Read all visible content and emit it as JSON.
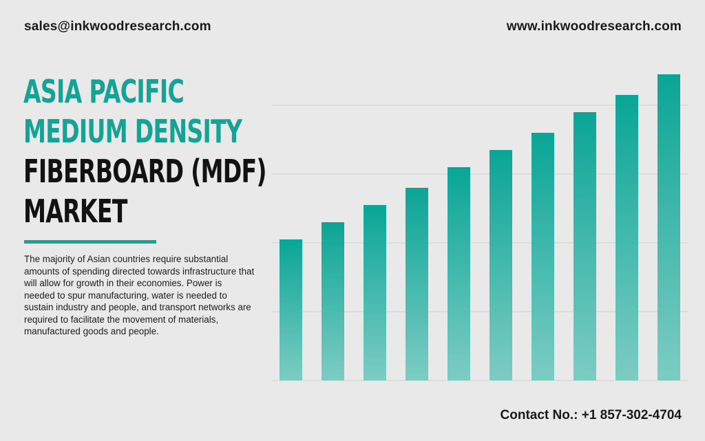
{
  "header": {
    "email": "sales@inkwoodresearch.com",
    "website": "www.inkwoodresearch.com"
  },
  "title": {
    "line1": "ASIA PACIFIC",
    "line2": "MEDIUM DENSITY",
    "line3": "FIBERBOARD (MDF)",
    "line4": "MARKET"
  },
  "description": "The majority of Asian countries require substantial amounts of spending directed towards infrastructure that will allow for growth in their economies. Power is needed to spur manufacturing, water is needed to sustain industry and people, and transport networks are required to facilitate the movement of materials, manufactured goods and people.",
  "footer": {
    "contact": "Contact No.: +1 857-302-4704"
  },
  "colors": {
    "accent": "#15a395",
    "bar_top": "#0aa596",
    "bar_bottom": "#7dccc3",
    "gridline": "#cfcfcf",
    "text_dark": "#121212"
  },
  "chart_data": {
    "type": "bar",
    "categories": [
      "",
      "",
      "",
      "",
      "",
      "",
      "",
      "",
      "",
      ""
    ],
    "values": [
      41,
      46,
      51,
      56,
      62,
      67,
      72,
      78,
      83,
      89
    ],
    "ylim": [
      0,
      100
    ],
    "title": "",
    "xlabel": "",
    "ylabel": "",
    "grid": true,
    "legend": "none"
  }
}
